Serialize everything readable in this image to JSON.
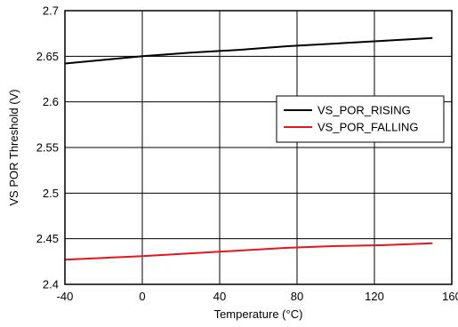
{
  "chart_data": {
    "type": "line",
    "xlabel": "Temperature (°C)",
    "ylabel": "VS POR Threshold (V)",
    "xlim": [
      -40,
      160
    ],
    "ylim": [
      2.4,
      2.7
    ],
    "xticks": [
      -40,
      0,
      40,
      80,
      120,
      160
    ],
    "xtick_labels": [
      "-40",
      "0",
      "40",
      "80",
      "120",
      "160"
    ],
    "yticks": [
      2.4,
      2.45,
      2.5,
      2.55,
      2.6,
      2.65,
      2.7
    ],
    "ytick_labels": [
      "2.4",
      "2.45",
      "2.5",
      "2.55",
      "2.6",
      "2.65",
      "2.7"
    ],
    "grid": true,
    "legend_position": "right",
    "series": [
      {
        "name": "VS_POR_RISING",
        "color": "#000000",
        "x": [
          -40,
          -20,
          0,
          25,
          50,
          75,
          100,
          125,
          150
        ],
        "y": [
          2.642,
          2.646,
          2.65,
          2.654,
          2.657,
          2.661,
          2.664,
          2.667,
          2.67
        ]
      },
      {
        "name": "VS_POR_FALLING",
        "color": "#e8141e",
        "x": [
          -40,
          -20,
          0,
          25,
          50,
          75,
          100,
          125,
          150
        ],
        "y": [
          2.427,
          2.429,
          2.431,
          2.434,
          2.437,
          2.44,
          2.442,
          2.443,
          2.445
        ]
      }
    ]
  }
}
